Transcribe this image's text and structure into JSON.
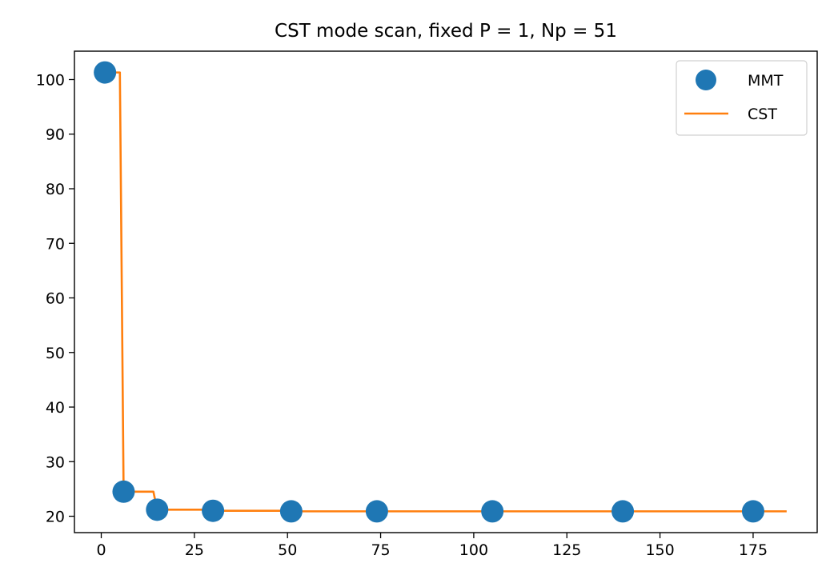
{
  "chart_data": {
    "type": "line",
    "title": "CST mode scan, fixed P = 1, Np = 51",
    "xlabel": "",
    "ylabel": "",
    "xlim": [
      -7.2,
      192.2
    ],
    "ylim": [
      17,
      105.2
    ],
    "x_ticks": [
      0,
      25,
      50,
      75,
      100,
      125,
      150,
      175
    ],
    "y_ticks": [
      20,
      30,
      40,
      50,
      60,
      70,
      80,
      90,
      100
    ],
    "grid": false,
    "legend_position": "top-right",
    "series": [
      {
        "name": "MMT",
        "style": "markers",
        "color": "#1f77b4",
        "x": [
          1,
          6,
          15,
          30,
          51,
          74,
          105,
          140,
          175
        ],
        "y": [
          101.3,
          24.5,
          21.2,
          21.0,
          20.9,
          20.9,
          20.9,
          20.9,
          20.9
        ]
      },
      {
        "name": "CST",
        "style": "line",
        "color": "#ff7f0e",
        "x": [
          1,
          5,
          6,
          14,
          15,
          29,
          30,
          50,
          51,
          100,
          184
        ],
        "y": [
          101.3,
          101.3,
          24.5,
          24.5,
          21.2,
          21.2,
          21.0,
          21.0,
          20.9,
          20.9,
          20.9
        ]
      }
    ]
  }
}
